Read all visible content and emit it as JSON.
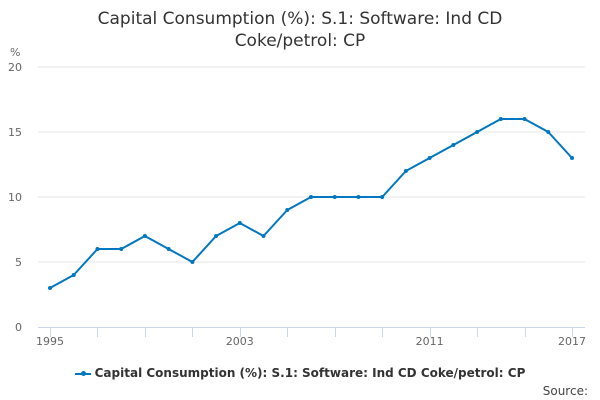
{
  "chart_data": {
    "type": "line",
    "title": "Capital Consumption (%): S.1: Software: Ind CD Coke/petrol: CP",
    "title_lines": [
      "Capital Consumption (%): S.1: Software: Ind CD",
      "Coke/petrol: CP"
    ],
    "ylabel": "%",
    "xlabel": "",
    "ylim": [
      0,
      20
    ],
    "yticks": [
      "0",
      "5",
      "10",
      "15",
      "20"
    ],
    "xlim": [
      1995,
      2017
    ],
    "xtick_labels": [
      "1995",
      "2003",
      "2011",
      "2017"
    ],
    "grid": true,
    "legend_position": "bottom",
    "series": [
      {
        "name": "Capital Consumption (%): S.1: Software: Ind CD Coke/petrol: CP",
        "color": "#0077c0",
        "x": [
          1995,
          1996,
          1997,
          1998,
          1999,
          2000,
          2001,
          2002,
          2003,
          2004,
          2005,
          2006,
          2007,
          2008,
          2009,
          2010,
          2011,
          2012,
          2013,
          2014,
          2015,
          2016,
          2017
        ],
        "values": [
          3,
          4,
          6,
          6,
          7,
          6,
          5,
          7,
          8,
          7,
          9,
          10,
          10,
          10,
          10,
          12,
          13,
          14,
          15,
          16,
          16,
          15,
          13
        ]
      }
    ]
  },
  "source_label": "Source:"
}
